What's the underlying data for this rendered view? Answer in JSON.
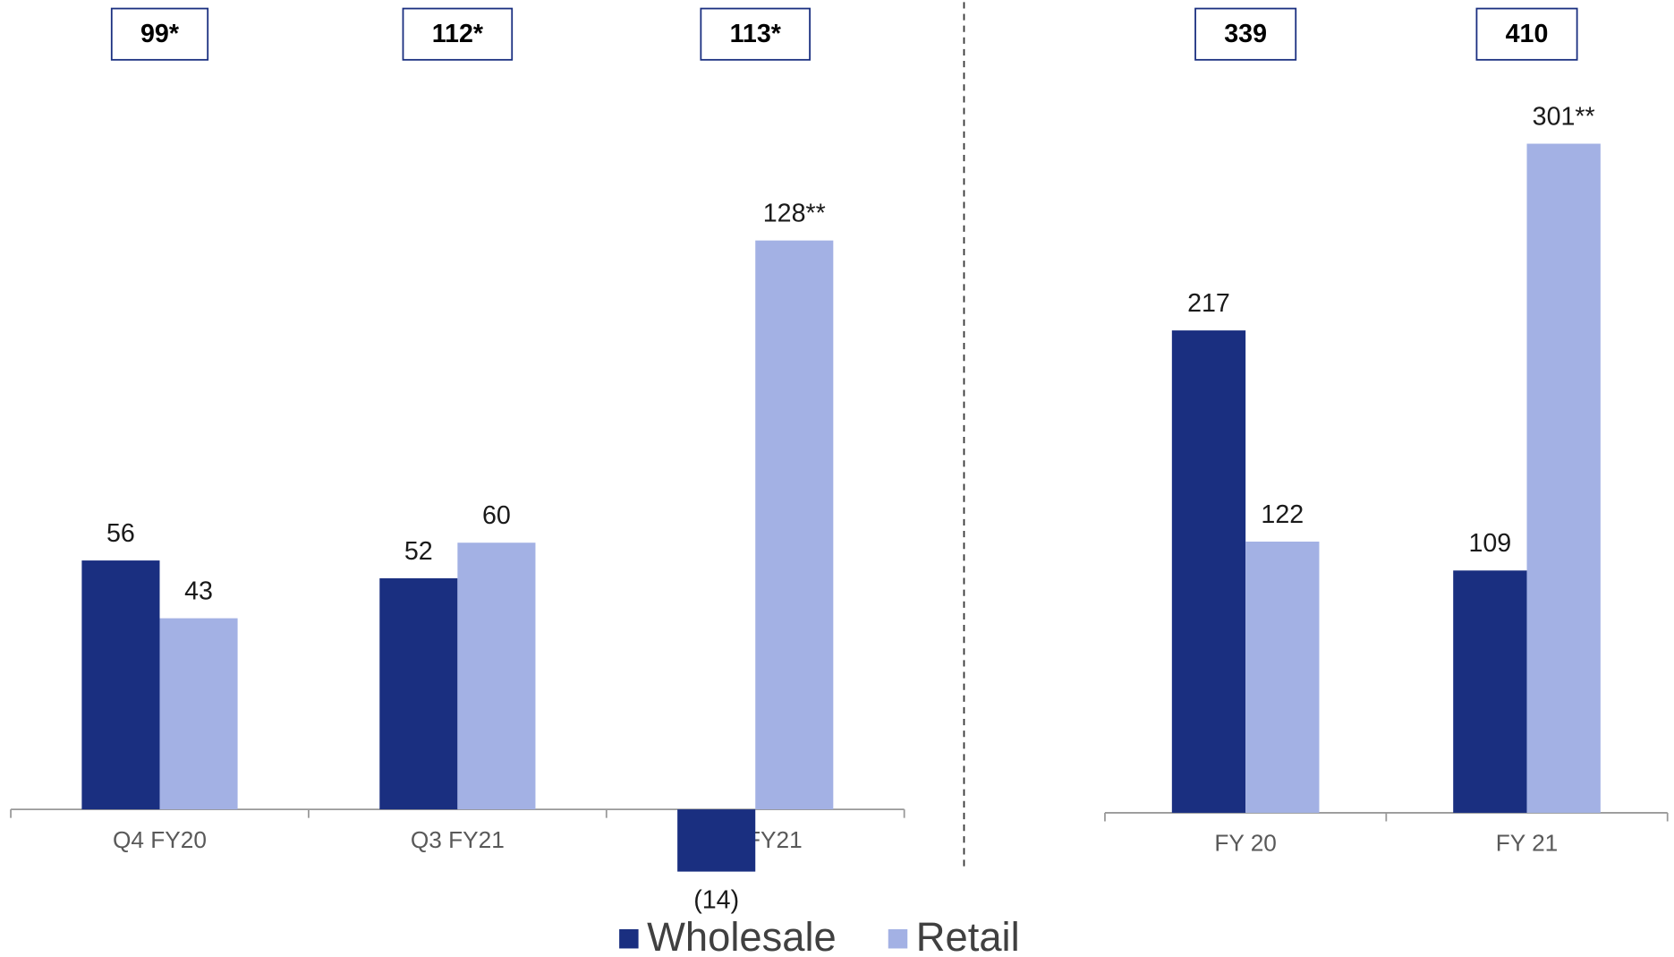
{
  "chart_data": [
    {
      "type": "bar",
      "categories": [
        "Q4 FY20",
        "Q3 FY21",
        "Q4 FY21"
      ],
      "annotations": [
        "99*",
        "112*",
        "113*"
      ],
      "series": [
        {
          "name": "Wholesale",
          "color": "#1a2f80",
          "values": [
            56,
            52,
            -14
          ],
          "value_labels": [
            "56",
            "52",
            "(14)"
          ]
        },
        {
          "name": "Retail",
          "color": "#a3b1e4",
          "values": [
            43,
            60,
            128
          ],
          "value_labels": [
            "43",
            "60",
            "128**"
          ]
        }
      ],
      "ylim": [
        -20,
        160
      ]
    },
    {
      "type": "bar",
      "categories": [
        "FY 20",
        "FY 21"
      ],
      "annotations": [
        "339",
        "410"
      ],
      "series": [
        {
          "color": "#1a2f80",
          "values": [
            217,
            109
          ]
        },
        {
          "color": "#a3b1e4",
          "values": [
            122,
            301
          ],
          "value_labels": [
            "122",
            "301**"
          ]
        }
      ],
      "ylim": [
        0,
        320
      ]
    }
  ]
}
